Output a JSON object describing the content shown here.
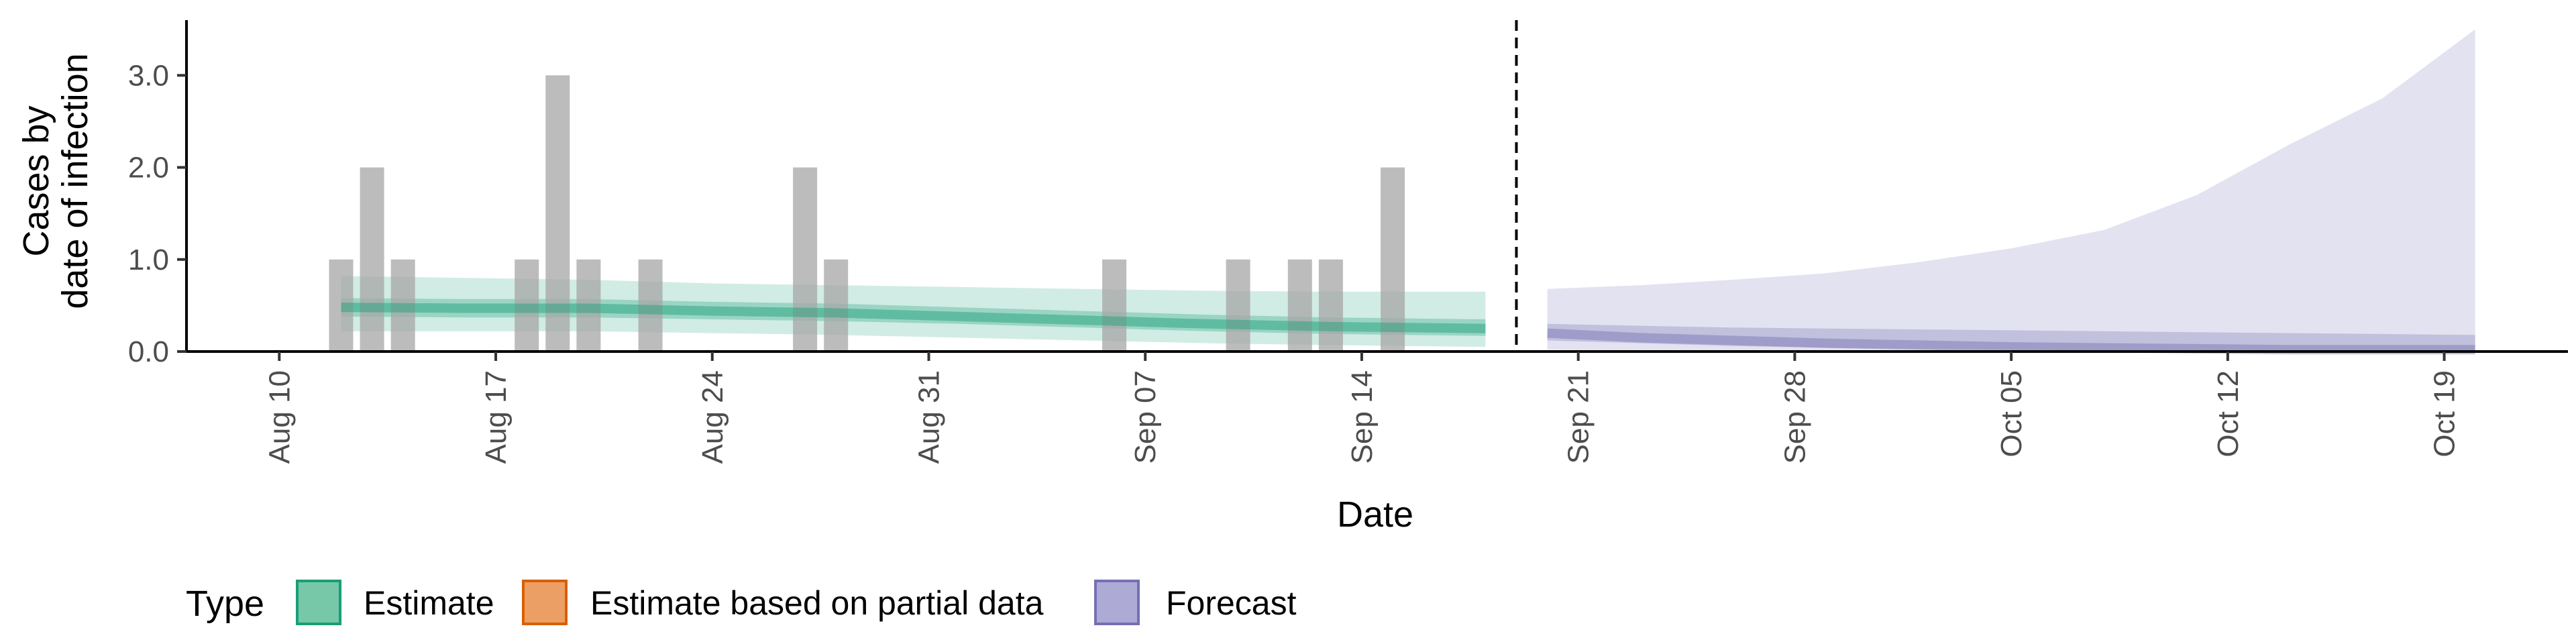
{
  "chart_data": {
    "type": "bar",
    "xlabel": "Date",
    "ylabel_lines": [
      "Cases by",
      "date of infection"
    ],
    "ylim": [
      0,
      3.6
    ],
    "xlim": [
      "2020-08-07",
      "2020-10-23"
    ],
    "y_ticks": [
      0,
      1,
      2,
      3
    ],
    "y_tick_labels": [
      "0.0",
      "1.0",
      "2.0",
      "3.0"
    ],
    "x_ticks": [
      "2020-08-10",
      "2020-08-17",
      "2020-08-24",
      "2020-08-31",
      "2020-09-07",
      "2020-09-14",
      "2020-09-21",
      "2020-09-28",
      "2020-10-05",
      "2020-10-12",
      "2020-10-19"
    ],
    "x_tick_labels": [
      "Aug 10",
      "Aug 17",
      "Aug 24",
      "Aug 31",
      "Sep 07",
      "Sep 14",
      "Sep 21",
      "Sep 28",
      "Oct 05",
      "Oct 12",
      "Oct 19"
    ],
    "grid": false,
    "legend_position": "bottom-left",
    "vline_date": "2020-09-19",
    "observed_cases": [
      {
        "date": "2020-08-12",
        "value": 1
      },
      {
        "date": "2020-08-13",
        "value": 2
      },
      {
        "date": "2020-08-14",
        "value": 1
      },
      {
        "date": "2020-08-18",
        "value": 1
      },
      {
        "date": "2020-08-19",
        "value": 3
      },
      {
        "date": "2020-08-20",
        "value": 1
      },
      {
        "date": "2020-08-22",
        "value": 1
      },
      {
        "date": "2020-08-27",
        "value": 2
      },
      {
        "date": "2020-08-28",
        "value": 1
      },
      {
        "date": "2020-09-06",
        "value": 1
      },
      {
        "date": "2020-09-10",
        "value": 1
      },
      {
        "date": "2020-09-12",
        "value": 1
      },
      {
        "date": "2020-09-13",
        "value": 1
      },
      {
        "date": "2020-09-15",
        "value": 2
      }
    ],
    "series": [
      {
        "type_label": "Estimate",
        "color": "#1b9e77",
        "x": [
          "2020-08-12",
          "2020-08-16",
          "2020-08-20",
          "2020-08-24",
          "2020-08-28",
          "2020-09-01",
          "2020-09-05",
          "2020-09-09",
          "2020-09-13",
          "2020-09-18"
        ],
        "median": [
          0.48,
          0.47,
          0.47,
          0.44,
          0.42,
          0.38,
          0.34,
          0.3,
          0.27,
          0.25
        ],
        "lower50": [
          0.38,
          0.37,
          0.37,
          0.35,
          0.33,
          0.3,
          0.26,
          0.22,
          0.19,
          0.17
        ],
        "upper50": [
          0.58,
          0.57,
          0.57,
          0.54,
          0.52,
          0.48,
          0.44,
          0.4,
          0.37,
          0.35
        ],
        "lower90": [
          0.22,
          0.22,
          0.22,
          0.2,
          0.18,
          0.15,
          0.12,
          0.09,
          0.07,
          0.05
        ],
        "upper90": [
          0.82,
          0.8,
          0.78,
          0.74,
          0.72,
          0.7,
          0.68,
          0.66,
          0.65,
          0.65
        ]
      },
      {
        "type_label": "Forecast",
        "color": "#7570b3",
        "x": [
          "2020-09-20",
          "2020-09-23",
          "2020-09-26",
          "2020-09-29",
          "2020-10-02",
          "2020-10-05",
          "2020-10-08",
          "2020-10-11",
          "2020-10-14",
          "2020-10-17",
          "2020-10-20"
        ],
        "median": [
          0.2,
          0.15,
          0.12,
          0.09,
          0.07,
          0.05,
          0.04,
          0.03,
          0.02,
          0.02,
          0.02
        ],
        "lower50": [
          0.12,
          0.09,
          0.06,
          0.04,
          0.03,
          0.02,
          0.01,
          0.01,
          0.01,
          0.01,
          0.01
        ],
        "upper50": [
          0.3,
          0.28,
          0.26,
          0.25,
          0.24,
          0.23,
          0.22,
          0.21,
          0.2,
          0.19,
          0.18
        ],
        "lower90": [
          0.02,
          0.01,
          0.0,
          0.0,
          0.0,
          0.0,
          0.0,
          0.0,
          0.0,
          0.0,
          0.0
        ],
        "upper90": [
          0.68,
          0.72,
          0.78,
          0.85,
          0.97,
          1.12,
          1.32,
          1.7,
          2.25,
          2.75,
          3.5
        ]
      }
    ]
  },
  "legend": {
    "title": "Type",
    "items": [
      {
        "label": "Estimate",
        "fill": "#77c8a8",
        "stroke": "#1b9e77"
      },
      {
        "label": "Estimate based on partial data",
        "fill": "#ec9f64",
        "stroke": "#d95f02"
      },
      {
        "label": "Forecast",
        "fill": "#aeaad6",
        "stroke": "#7570b3"
      }
    ]
  }
}
